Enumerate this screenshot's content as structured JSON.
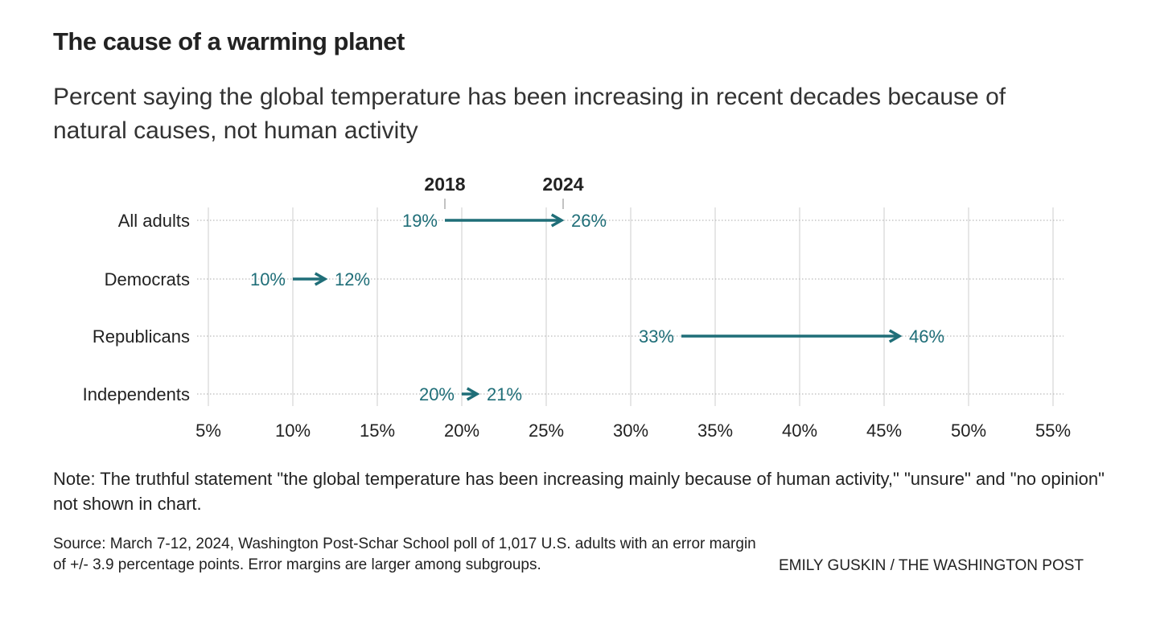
{
  "chart_data": {
    "type": "arrow-dot",
    "title": "The cause of a warming planet",
    "subtitle": "Percent saying the global temperature has been increasing in recent decades because of natural causes, not human activity",
    "series_labels": [
      "2018",
      "2024"
    ],
    "categories": [
      "All adults",
      "Democrats",
      "Republicans",
      "Independents"
    ],
    "series": [
      {
        "name": "2018",
        "values": [
          19,
          10,
          33,
          20
        ]
      },
      {
        "name": "2024",
        "values": [
          26,
          12,
          46,
          21
        ]
      }
    ],
    "value_labels": {
      "2018": [
        "19%",
        "10%",
        "33%",
        "20%"
      ],
      "2024": [
        "26%",
        "12%",
        "46%",
        "21%"
      ]
    },
    "xlim": [
      5,
      55
    ],
    "xticks": [
      5,
      10,
      15,
      20,
      25,
      30,
      35,
      40,
      45,
      50,
      55
    ],
    "xtick_labels": [
      "5%",
      "10%",
      "15%",
      "20%",
      "25%",
      "30%",
      "35%",
      "40%",
      "45%",
      "50%",
      "55%"
    ],
    "grid": true,
    "color": "#1f6e78"
  },
  "note": "Note: The truthful statement \"the global temperature has been increasing mainly because of human activity,\" \"unsure\" and \"no opinion\" not shown in chart.",
  "source": "Source: March 7-12, 2024, Washington Post-Schar School poll of 1,017 U.S. adults with an error margin of +/- 3.9 percentage points. Error margins are larger among subgroups.",
  "credit": "EMILY GUSKIN / THE WASHINGTON POST"
}
